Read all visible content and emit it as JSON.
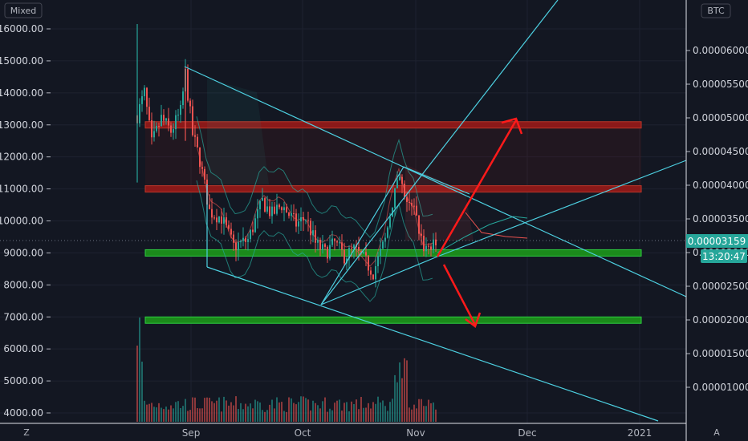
{
  "window": {
    "mode_label": "Mixed",
    "currency_label": "BTC",
    "last_price": "0.00003159",
    "countdown": "13:20:47",
    "zoom_icon": "Z",
    "auto_icon": "A"
  },
  "colors": {
    "background": "#131722",
    "up": "#26a69a",
    "down": "#ef5350",
    "channel": "#4dd0e1",
    "resistance": "#8b1a1a",
    "support": "#1b8a1b",
    "arrow": "#ff1a1a"
  },
  "chart_data": {
    "type": "candlestick",
    "left_axis": {
      "unit": "USD",
      "ylim": [
        3700,
        16600
      ],
      "ticks": [
        "16000.00",
        "15000.00",
        "14000.00",
        "13000.00",
        "12000.00",
        "11000.00",
        "10000.00",
        "9000.00",
        "8000.00",
        "7000.00",
        "6000.00",
        "5000.00",
        "4000.00"
      ]
    },
    "right_axis": {
      "unit": "BTC",
      "ticks": [
        "0.00006000",
        "0.00005500",
        "0.00005000",
        "0.00004500",
        "0.00004000",
        "0.00003500",
        "0.00003000",
        "0.00002500",
        "0.00002000",
        "0.00001500",
        "0.00001000"
      ]
    },
    "x_axis": {
      "ticks": [
        "Sep",
        "Oct",
        "Nov",
        "Dec",
        "2021"
      ]
    },
    "horizontal_zones": [
      {
        "kind": "resistance",
        "low": 12900,
        "high": 13100
      },
      {
        "kind": "resistance",
        "low": 10900,
        "high": 11100
      },
      {
        "kind": "support",
        "low": 8900,
        "high": 9100
      },
      {
        "kind": "support",
        "low": 6800,
        "high": 7000
      }
    ],
    "projections": [
      "up-arrow",
      "down-arrow"
    ]
  }
}
